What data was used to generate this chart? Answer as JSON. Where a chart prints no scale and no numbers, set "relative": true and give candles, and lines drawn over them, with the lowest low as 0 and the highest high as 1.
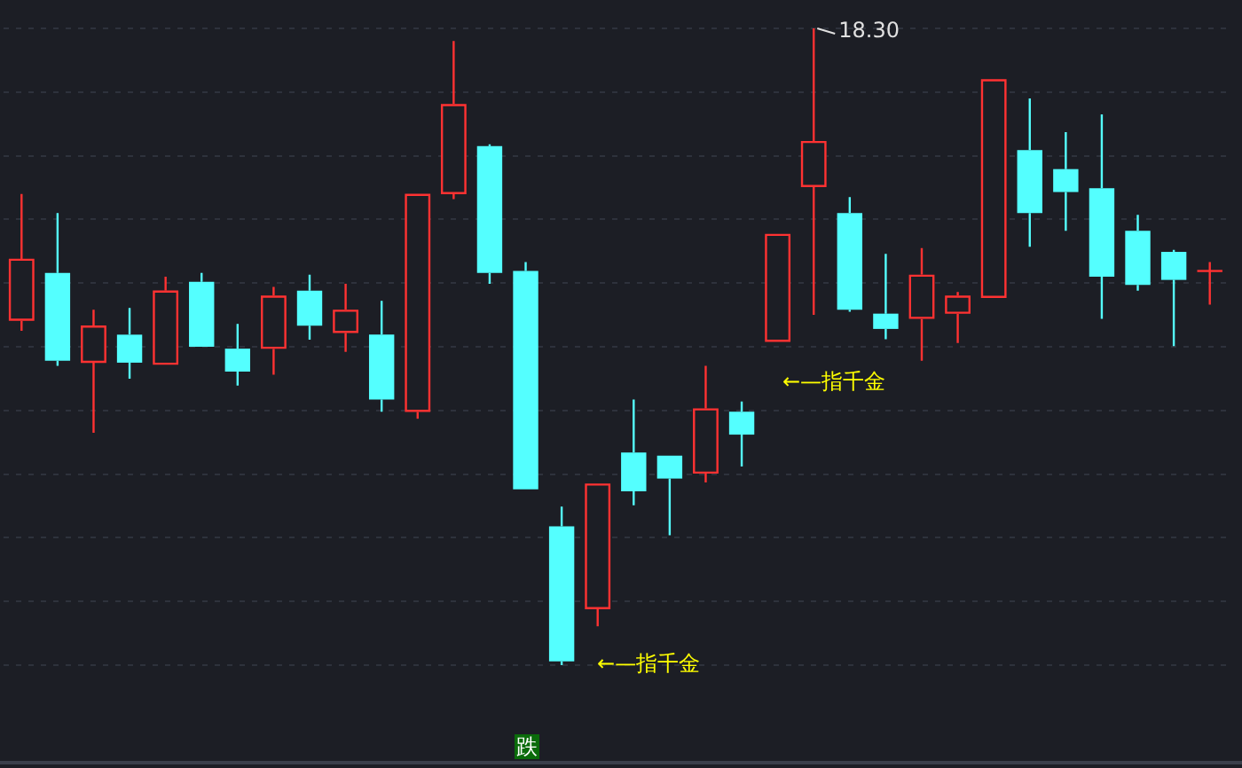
{
  "chart_data": {
    "type": "candlestick",
    "relative": true,
    "grid": "y",
    "categories": [
      null,
      null,
      null,
      null,
      null,
      null,
      null,
      null,
      null,
      null,
      null,
      null,
      null,
      null,
      null,
      null,
      null,
      null,
      null,
      null,
      null,
      null,
      null,
      null,
      null,
      null,
      null,
      null,
      null,
      null,
      null,
      null,
      null,
      null
    ],
    "ohlc": [
      [
        0.541,
        0.74,
        0.525,
        0.638
      ],
      [
        0.616,
        0.71,
        0.47,
        0.478
      ],
      [
        0.475,
        0.558,
        0.365,
        0.533
      ],
      [
        0.519,
        0.561,
        0.45,
        0.475
      ],
      [
        0.472,
        0.61,
        0.472,
        0.588
      ],
      [
        0.602,
        0.616,
        0.5,
        0.5
      ],
      [
        0.497,
        0.536,
        0.439,
        0.461
      ],
      [
        0.497,
        0.594,
        0.456,
        0.58
      ],
      [
        0.588,
        0.613,
        0.511,
        0.533
      ],
      [
        0.522,
        0.599,
        0.492,
        0.558
      ],
      [
        0.519,
        0.572,
        0.398,
        0.417
      ],
      [
        0.398,
        0.74,
        0.387,
        0.74
      ],
      [
        0.74,
        0.98,
        0.732,
        0.881
      ],
      [
        0.815,
        0.818,
        0.599,
        0.616
      ],
      [
        0.619,
        0.633,
        0.276,
        0.276
      ],
      [
        0.218,
        0.249,
        0.0,
        0.006
      ],
      [
        0.088,
        0.285,
        0.061,
        0.285
      ],
      [
        0.334,
        0.417,
        0.251,
        0.273
      ],
      [
        0.329,
        0.329,
        0.204,
        0.293
      ],
      [
        0.301,
        0.47,
        0.287,
        0.403
      ],
      [
        0.398,
        0.414,
        0.312,
        0.362
      ],
      [
        0.508,
        0.677,
        0.508,
        0.677
      ],
      [
        0.751,
        1.0,
        0.55,
        0.823
      ],
      [
        0.71,
        0.735,
        0.555,
        0.558
      ],
      [
        0.552,
        0.646,
        0.512,
        0.528
      ],
      [
        0.544,
        0.655,
        0.478,
        0.613
      ],
      [
        0.552,
        0.586,
        0.506,
        0.58
      ],
      [
        0.577,
        0.92,
        0.577,
        0.92
      ],
      [
        0.809,
        0.89,
        0.657,
        0.71
      ],
      [
        0.779,
        0.837,
        0.682,
        0.743
      ],
      [
        0.749,
        0.865,
        0.544,
        0.61
      ],
      [
        0.682,
        0.707,
        0.588,
        0.597
      ],
      [
        0.649,
        0.652,
        0.501,
        0.605
      ],
      [
        0.619,
        0.633,
        0.566,
        0.619
      ]
    ],
    "annotations": [
      "18.30",
      "←—指千金",
      "←—指千金",
      "跌"
    ]
  }
}
